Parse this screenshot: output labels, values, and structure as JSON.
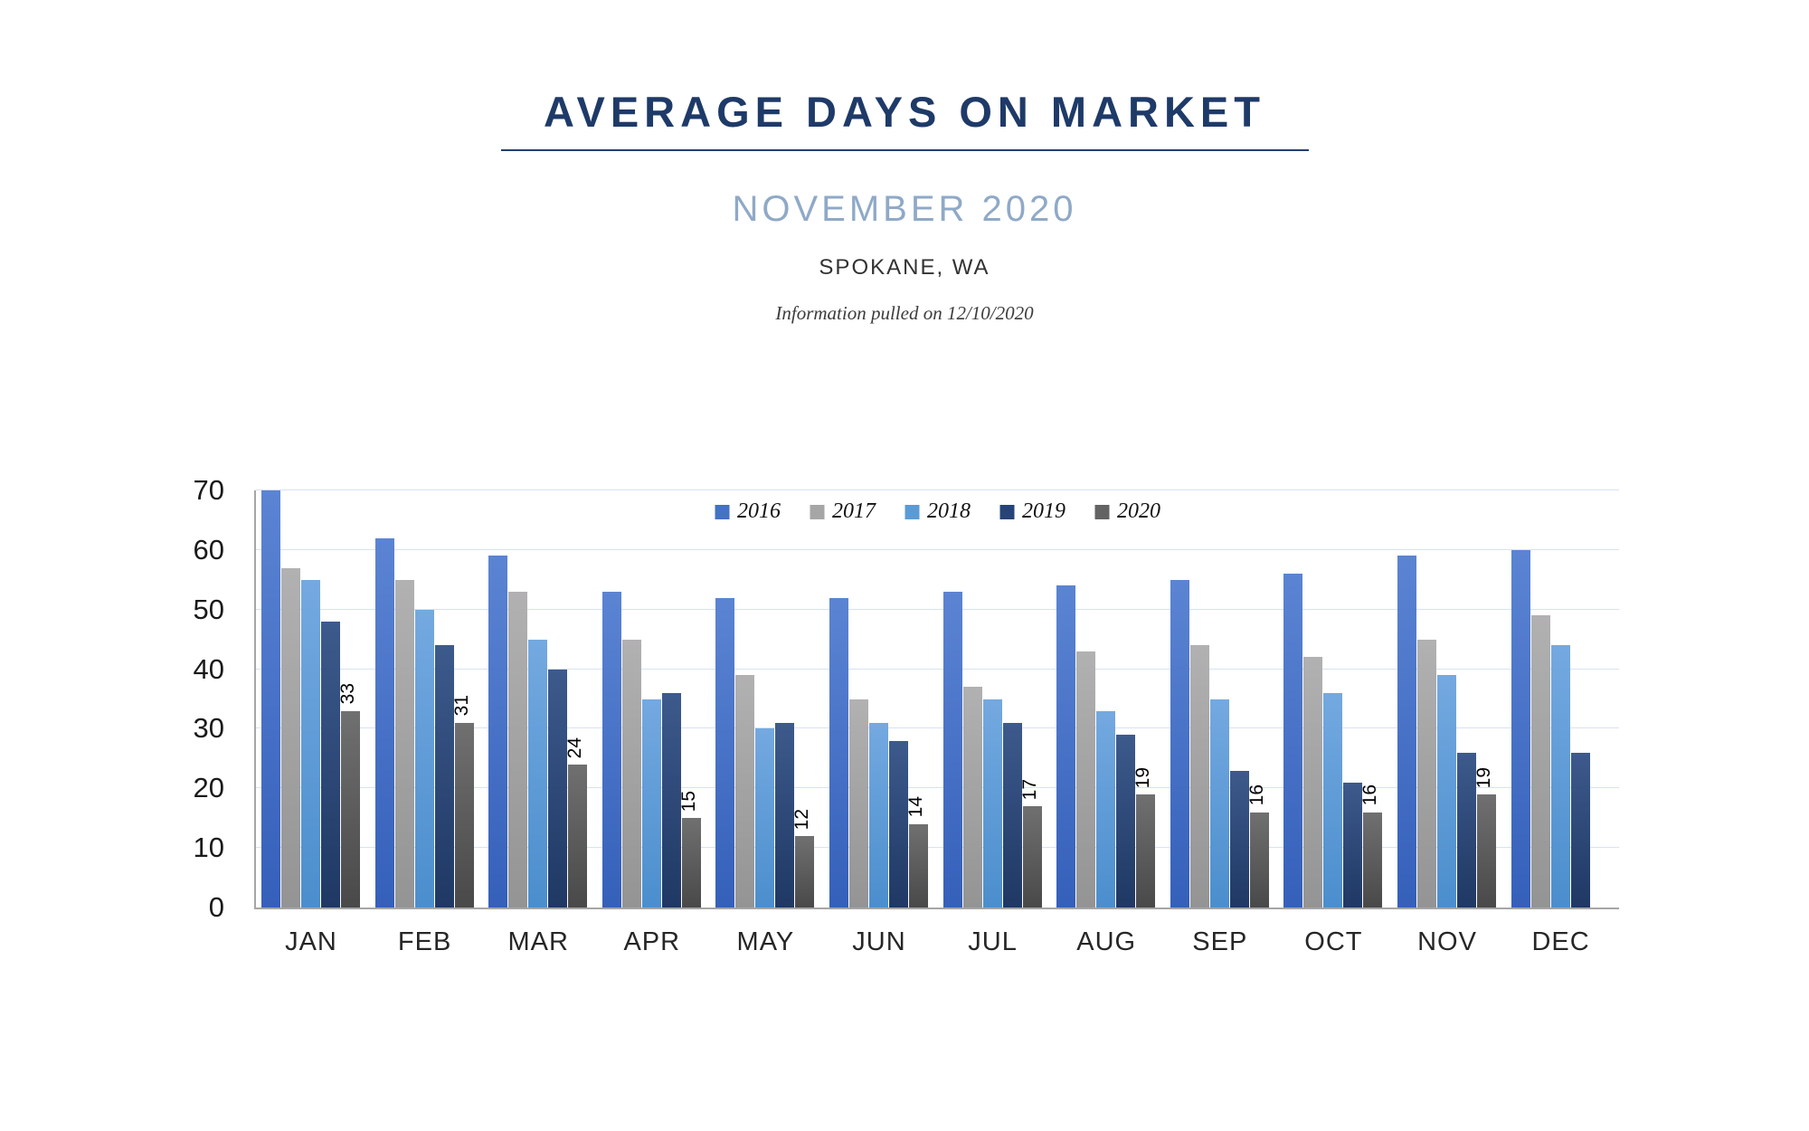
{
  "header": {
    "title": "AVERAGE DAYS ON MARKET",
    "subtitle": "NOVEMBER 2020",
    "location": "SPOKANE, WA",
    "note": "Information pulled on 12/10/2020",
    "title_color": "#1e3a68",
    "subtitle_color": "#8fa9c7"
  },
  "chart_data": {
    "type": "bar",
    "title": "AVERAGE DAYS ON MARKET",
    "xlabel": "",
    "ylabel": "",
    "ylim": [
      0,
      70
    ],
    "yticks": [
      0,
      10,
      20,
      30,
      40,
      50,
      60,
      70
    ],
    "grid": true,
    "grid_color": "#d8e2f3",
    "axis_color": "#a6a6a6",
    "legend_position": "top-center",
    "data_label_color": "#000000",
    "categories": [
      "JAN",
      "FEB",
      "MAR",
      "APR",
      "MAY",
      "JUN",
      "JUL",
      "AUG",
      "SEP",
      "OCT",
      "NOV",
      "DEC"
    ],
    "series": [
      {
        "name": "2016",
        "legend_color": "#4472c4",
        "gradient_top": "#5b84d3",
        "gradient_bottom": "#3560ba",
        "values": [
          70,
          62,
          59,
          53,
          52,
          52,
          53,
          54,
          55,
          56,
          59,
          60
        ],
        "show_data_labels": false
      },
      {
        "name": "2017",
        "legend_color": "#a6a6a6",
        "gradient_top": "#b2b1b2",
        "gradient_bottom": "#949494",
        "values": [
          57,
          55,
          53,
          45,
          39,
          35,
          37,
          43,
          44,
          42,
          45,
          49
        ],
        "show_data_labels": false
      },
      {
        "name": "2018",
        "legend_color": "#5b9bd5",
        "gradient_top": "#74a9e0",
        "gradient_bottom": "#4b8ecd",
        "values": [
          55,
          50,
          45,
          35,
          30,
          31,
          35,
          33,
          35,
          36,
          39,
          44
        ],
        "show_data_labels": false
      },
      {
        "name": "2019",
        "legend_color": "#264478",
        "gradient_top": "#3d5a8c",
        "gradient_bottom": "#1f3864",
        "values": [
          48,
          44,
          40,
          36,
          31,
          28,
          31,
          29,
          23,
          21,
          26,
          26
        ],
        "show_data_labels": false
      },
      {
        "name": "2020",
        "legend_color": "#636363",
        "gradient_top": "#707070",
        "gradient_bottom": "#494949",
        "values": [
          33,
          31,
          24,
          15,
          12,
          14,
          17,
          19,
          16,
          16,
          19,
          null
        ],
        "show_data_labels": true
      }
    ]
  }
}
